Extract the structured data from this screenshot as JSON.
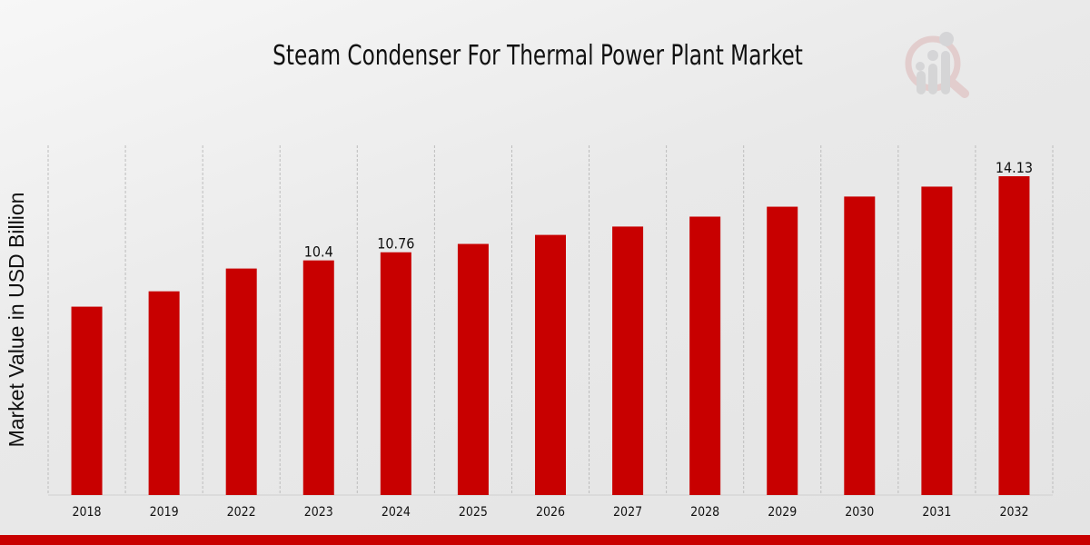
{
  "chart_data": {
    "type": "bar",
    "title": "Steam Condenser For Thermal Power Plant Market",
    "xlabel": "",
    "ylabel": "Market Value in USD Billion",
    "categories": [
      "2018",
      "2019",
      "2022",
      "2023",
      "2024",
      "2025",
      "2026",
      "2027",
      "2028",
      "2029",
      "2030",
      "2031",
      "2032"
    ],
    "values": [
      8.35,
      9.03,
      10.04,
      10.4,
      10.76,
      11.13,
      11.53,
      11.9,
      12.34,
      12.78,
      13.23,
      13.67,
      14.13
    ],
    "data_labels": {
      "2023": "10.4",
      "2024": "10.76",
      "2032": "14.13"
    },
    "ylim": [
      0,
      15.5
    ],
    "grid": "vertical dashed",
    "bar_color": "#c80000",
    "legend": "none"
  },
  "logo": {
    "icon": "magnifier-bar-chart-icon"
  }
}
